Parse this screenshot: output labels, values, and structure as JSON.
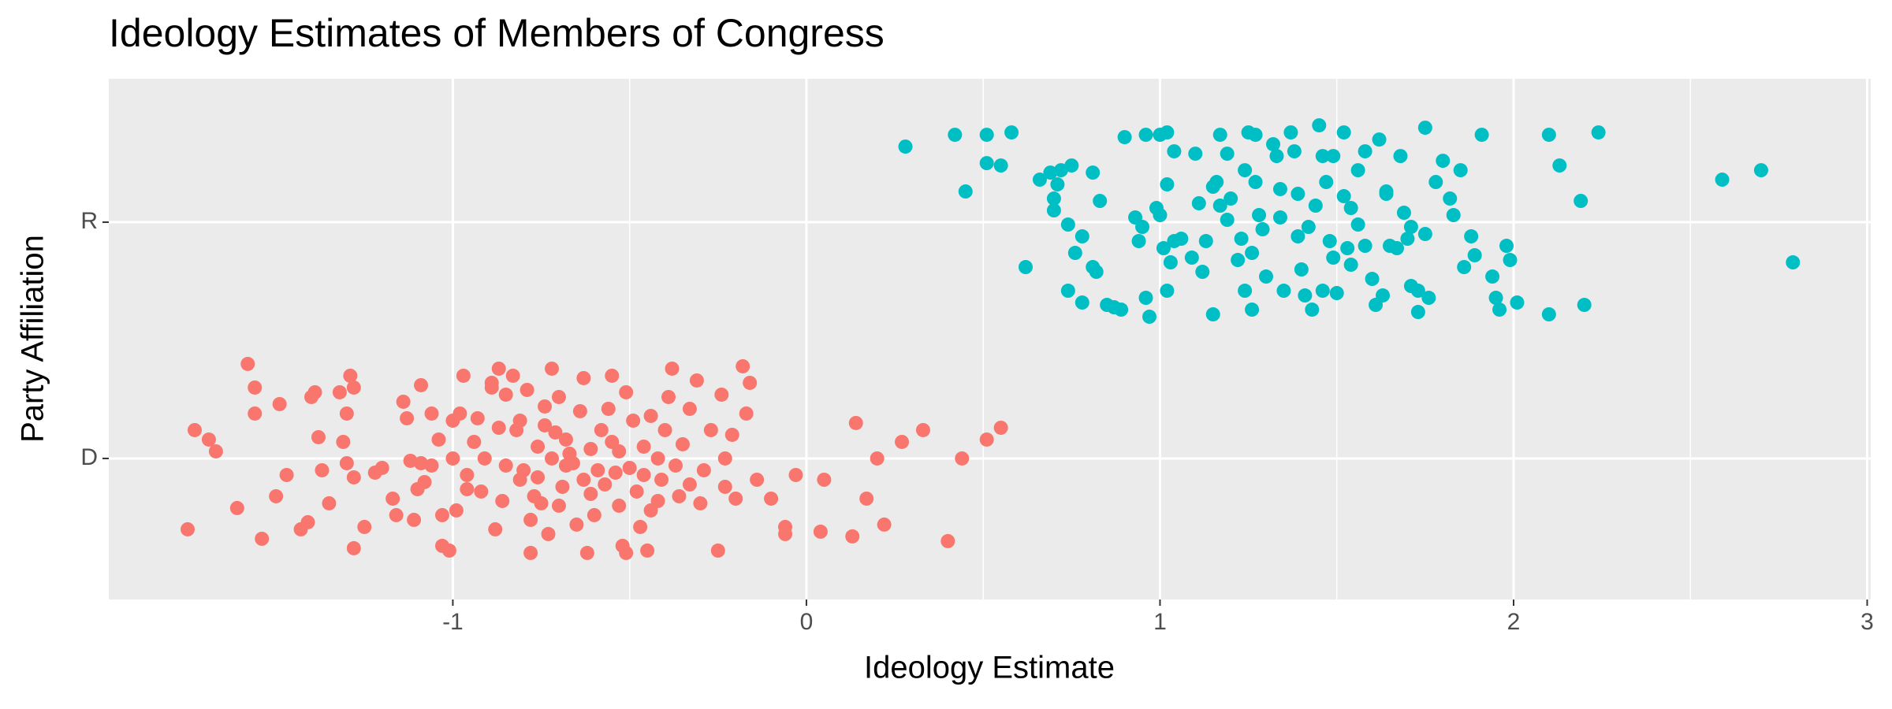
{
  "chart_data": {
    "type": "scatter",
    "title": "Ideology Estimates of Members of Congress",
    "x_label": "Ideology Estimate",
    "y_label": "Party Affiliation",
    "xlim": [
      -1.973,
      3.01
    ],
    "xticks": [
      -1,
      0,
      1,
      2,
      3
    ],
    "ylim": [
      0.403,
      2.607
    ],
    "yticks": [
      {
        "value": 1,
        "label": "D"
      },
      {
        "value": 2,
        "label": "R"
      }
    ],
    "grid": true,
    "series": [
      {
        "color": "#F8766D",
        "x": [
          -1.75,
          -1.73,
          -1.69,
          -1.67,
          -1.61,
          -1.58,
          -1.56,
          -1.56,
          -1.54,
          -1.5,
          -1.49,
          -1.47,
          -1.43,
          -1.41,
          -1.4,
          -1.39,
          -1.38,
          -1.37,
          -1.35,
          -1.32,
          -1.31,
          -1.3,
          -1.3,
          -1.29,
          -1.28,
          -1.28,
          -1.28,
          -1.25,
          -1.22,
          -1.2,
          -1.17,
          -1.16,
          -1.14,
          -1.13,
          -1.12,
          -1.11,
          -1.1,
          -1.09,
          -1.09,
          -1.08,
          -1.06,
          -1.06,
          -1.04,
          -1.03,
          -1.03,
          -1.01,
          -1.0,
          -1.0,
          -0.99,
          -0.98,
          -0.97,
          -0.96,
          -0.96,
          -0.94,
          -0.93,
          -0.92,
          -0.91,
          -0.89,
          -0.89,
          -0.88,
          -0.87,
          -0.87,
          -0.86,
          -0.85,
          -0.85,
          -0.83,
          -0.82,
          -0.81,
          -0.81,
          -0.8,
          -0.79,
          -0.78,
          -0.78,
          -0.77,
          -0.76,
          -0.76,
          -0.75,
          -0.74,
          -0.74,
          -0.73,
          -0.72,
          -0.72,
          -0.71,
          -0.7,
          -0.7,
          -0.69,
          -0.68,
          -0.68,
          -0.67,
          -0.66,
          -0.65,
          -0.64,
          -0.63,
          -0.63,
          -0.62,
          -0.61,
          -0.61,
          -0.6,
          -0.59,
          -0.58,
          -0.57,
          -0.56,
          -0.55,
          -0.55,
          -0.54,
          -0.53,
          -0.53,
          -0.52,
          -0.51,
          -0.51,
          -0.5,
          -0.49,
          -0.48,
          -0.47,
          -0.46,
          -0.46,
          -0.45,
          -0.44,
          -0.44,
          -0.42,
          -0.42,
          -0.41,
          -0.4,
          -0.39,
          -0.38,
          -0.37,
          -0.36,
          -0.35,
          -0.33,
          -0.33,
          -0.31,
          -0.3,
          -0.29,
          -0.27,
          -0.25,
          -0.24,
          -0.23,
          -0.23,
          -0.21,
          -0.2,
          -0.18,
          -0.17,
          -0.16,
          -0.14,
          -0.1,
          -0.06,
          -0.06,
          -0.03,
          0.04,
          0.05,
          0.13,
          0.14,
          0.17,
          0.2,
          0.22,
          0.27,
          0.33,
          0.4,
          0.44,
          0.51,
          0.55
        ],
        "values": [
          0.7,
          1.12,
          1.08,
          1.03,
          0.79,
          1.4,
          1.3,
          1.19,
          0.66,
          0.84,
          1.23,
          0.93,
          0.7,
          0.73,
          1.26,
          1.28,
          1.09,
          0.95,
          0.81,
          1.28,
          1.07,
          1.19,
          0.98,
          1.35,
          1.3,
          0.92,
          0.62,
          0.71,
          0.94,
          0.96,
          0.83,
          0.76,
          1.24,
          1.17,
          0.99,
          0.74,
          0.87,
          1.31,
          0.98,
          0.9,
          0.97,
          1.19,
          1.08,
          0.76,
          0.63,
          0.61,
          1.16,
          1.0,
          0.78,
          1.19,
          1.35,
          0.87,
          0.93,
          1.07,
          1.17,
          0.86,
          1.0,
          1.3,
          1.32,
          0.7,
          1.13,
          1.38,
          0.82,
          0.97,
          1.27,
          1.35,
          1.12,
          0.91,
          1.16,
          0.95,
          1.29,
          0.74,
          0.6,
          0.84,
          1.05,
          0.92,
          0.81,
          1.22,
          1.14,
          0.68,
          1.38,
          1.0,
          1.11,
          1.26,
          0.8,
          0.88,
          0.97,
          1.08,
          1.02,
          0.98,
          0.72,
          1.2,
          0.91,
          1.34,
          0.6,
          1.04,
          0.85,
          0.76,
          0.95,
          1.12,
          0.89,
          1.21,
          1.07,
          1.35,
          0.94,
          0.8,
          1.03,
          0.63,
          0.6,
          1.28,
          0.96,
          1.16,
          0.86,
          0.71,
          1.05,
          0.93,
          0.61,
          0.78,
          1.18,
          1.0,
          0.82,
          0.91,
          1.12,
          1.26,
          1.38,
          0.97,
          0.84,
          1.06,
          0.89,
          1.21,
          1.33,
          0.81,
          0.95,
          1.12,
          0.61,
          1.27,
          1.0,
          0.88,
          1.1,
          0.83,
          1.39,
          1.19,
          1.32,
          0.91,
          0.83,
          0.71,
          0.68,
          0.93,
          0.69,
          0.91,
          0.67,
          1.15,
          0.83,
          1.0,
          0.72,
          1.07,
          1.12,
          0.65,
          1.0,
          1.08,
          1.13
        ]
      },
      {
        "color": "#00BFC4",
        "x": [
          0.28,
          0.45,
          0.42,
          0.51,
          0.58,
          0.51,
          0.55,
          0.62,
          0.66,
          0.69,
          0.71,
          0.72,
          0.75,
          0.7,
          0.7,
          0.81,
          0.74,
          0.76,
          0.74,
          0.78,
          0.78,
          0.81,
          0.82,
          0.83,
          0.85,
          0.87,
          0.89,
          0.9,
          0.96,
          0.93,
          0.94,
          0.95,
          0.96,
          0.97,
          1.0,
          1.02,
          1.04,
          1.02,
          0.99,
          1.0,
          1.01,
          1.03,
          1.02,
          1.04,
          1.06,
          1.1,
          1.11,
          1.09,
          1.12,
          1.15,
          1.13,
          1.15,
          1.17,
          1.19,
          1.17,
          1.2,
          1.23,
          1.24,
          1.25,
          1.27,
          1.22,
          1.24,
          1.26,
          1.26,
          1.27,
          1.29,
          1.3,
          1.32,
          1.33,
          1.34,
          1.35,
          1.37,
          1.38,
          1.39,
          1.39,
          1.4,
          1.41,
          1.43,
          1.44,
          1.45,
          1.46,
          1.47,
          1.48,
          1.49,
          1.5,
          1.52,
          1.52,
          1.54,
          1.54,
          1.56,
          1.58,
          1.58,
          1.6,
          1.61,
          1.62,
          1.64,
          1.65,
          1.67,
          1.68,
          1.69,
          1.71,
          1.71,
          1.73,
          1.73,
          1.75,
          1.75,
          1.76,
          1.78,
          1.8,
          1.82,
          1.83,
          1.85,
          1.86,
          1.88,
          1.89,
          1.91,
          1.94,
          1.95,
          1.96,
          1.98,
          1.99,
          2.01,
          2.1,
          2.1,
          2.13,
          2.19,
          2.2,
          2.24,
          2.59,
          2.7,
          2.79,
          1.16,
          1.19,
          1.28,
          1.34,
          1.42,
          1.46,
          1.49,
          1.53,
          1.56,
          1.63,
          1.64,
          1.7
        ],
        "values": [
          2.32,
          2.13,
          2.37,
          2.37,
          2.38,
          2.25,
          2.24,
          1.81,
          2.18,
          2.21,
          2.16,
          2.22,
          2.24,
          2.05,
          2.1,
          2.21,
          1.99,
          1.87,
          1.71,
          1.94,
          1.66,
          1.81,
          1.79,
          2.09,
          1.65,
          1.64,
          1.63,
          2.36,
          2.37,
          2.02,
          1.92,
          1.98,
          1.68,
          1.6,
          2.37,
          2.38,
          2.3,
          2.16,
          2.06,
          2.03,
          1.89,
          1.83,
          1.71,
          1.92,
          1.93,
          2.29,
          2.08,
          1.85,
          1.79,
          1.61,
          1.92,
          2.15,
          2.37,
          2.29,
          2.07,
          2.1,
          1.93,
          2.22,
          2.38,
          2.37,
          1.84,
          1.71,
          1.63,
          1.87,
          2.17,
          1.97,
          1.77,
          2.33,
          2.28,
          2.02,
          1.71,
          2.38,
          2.3,
          2.12,
          1.94,
          1.8,
          1.69,
          1.63,
          2.07,
          2.41,
          2.28,
          2.17,
          1.92,
          1.85,
          1.7,
          2.38,
          2.11,
          2.06,
          1.82,
          1.99,
          2.3,
          1.9,
          1.76,
          1.65,
          2.35,
          2.13,
          1.9,
          1.89,
          2.28,
          2.04,
          1.98,
          1.73,
          1.71,
          1.62,
          2.4,
          1.95,
          1.68,
          2.17,
          2.26,
          2.1,
          2.03,
          2.22,
          1.81,
          1.94,
          1.86,
          2.37,
          1.77,
          1.68,
          1.63,
          1.9,
          1.84,
          1.66,
          1.61,
          2.37,
          2.24,
          2.09,
          1.65,
          2.38,
          2.18,
          2.22,
          1.83,
          2.17,
          2.01,
          2.03,
          2.14,
          1.98,
          1.71,
          2.28,
          1.89,
          2.22,
          1.69,
          2.12,
          1.93
        ]
      }
    ]
  }
}
